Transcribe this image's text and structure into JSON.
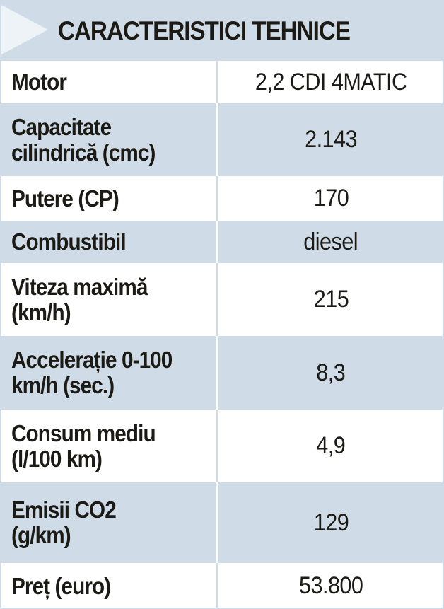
{
  "header": {
    "title": "CARACTERISTICI TEHNICE"
  },
  "colors": {
    "band": "#cfdbe6",
    "arrow": "#eef3f8",
    "text": "#1c1a14"
  },
  "rows": [
    {
      "label": "Motor",
      "value": "2,2 CDI 4MATIC"
    },
    {
      "label": "Capacitate\ncilindrică (cmc)",
      "value": "2.143"
    },
    {
      "label": "Putere (CP)",
      "value": "170"
    },
    {
      "label": "Combustibil",
      "value": "diesel"
    },
    {
      "label": "Viteza maximă\n(km/h)",
      "value": "215"
    },
    {
      "label": "Accelerație 0-100\nkm/h (sec.)",
      "value": "8,3"
    },
    {
      "label": "Consum mediu\n(l/100 km)",
      "value": "4,9"
    },
    {
      "label": "Emisii CO2\n(g/km)",
      "value": "129"
    },
    {
      "label": "Preț (euro)",
      "value": "53.800"
    }
  ]
}
